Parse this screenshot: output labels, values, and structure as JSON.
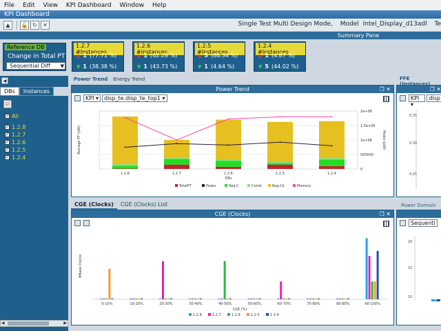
{
  "menu": [
    "File",
    "Edit",
    "View",
    "KPI Dashboard",
    "Window",
    "Help"
  ],
  "window_title": "KPI Dashboard",
  "context": [
    "Single Test Multi Design Mode,",
    "Model",
    "Intel_Display_d13adl",
    "Te"
  ],
  "summary_pane_title": "Summary Pane",
  "reference": {
    "label": "Reference DB",
    "metric": "Change in Total PT",
    "mode": "Sequential Diff"
  },
  "kpis": [
    {
      "header": "1.2.7 #Instances",
      "up_count": "1",
      "up_pct": "(77.71 %)",
      "down_count": "1",
      "down_pct": "(38.38 %)"
    },
    {
      "header": "1.2.6 #Instances",
      "up_count": "1",
      "up_pct": "(62.28 %)",
      "down_count": "1",
      "down_pct": "(43.73 %)"
    },
    {
      "header": "1.2.5 #Instances",
      "up_count": "5",
      "up_pct": "(86.34 %)",
      "down_count": "1",
      "down_pct": "(4.64 %)"
    },
    {
      "header": "1.2.4 #Instances",
      "up_count": "1",
      "up_pct": "(4.87 %)",
      "down_count": "5",
      "down_pct": "(44.02 %)"
    }
  ],
  "left": {
    "tabs": [
      "DBs",
      "Instances"
    ],
    "items": [
      "All",
      "1.2.8",
      "1.2.7",
      "1.2.6",
      "1.2.5",
      "1.2.4"
    ]
  },
  "power_tabs": [
    "Power Trend",
    "Energy Trend"
  ],
  "power_panel": {
    "title": "Power Trend",
    "kpi_select": "KPI",
    "instance_select": "disp_te.disp_te_top1"
  },
  "ffe": {
    "label": "FFE (Instances)",
    "kpi_select": "KPI",
    "instance_select": "disp"
  },
  "cge_tabs": [
    "CGE (Clocks)",
    "CGE (Clocks) List"
  ],
  "cge_panel": {
    "title": "CGE (Clocks)"
  },
  "power_domain_label": "Power Domain",
  "seq_select": "Sequenti",
  "colors": {
    "blue_panel": "#1f5f8b",
    "header_blue": "#2d6d9b",
    "yellow": "#e8d93a",
    "green": "#6db33f"
  },
  "chart_data": [
    {
      "type": "bar",
      "title": "Power Trend",
      "xlabel": "DBs",
      "ylabel": "Average PT (pW)",
      "y2label": "Peaks (pW)",
      "categories": [
        "1.2.8",
        "1.2.7",
        "1.2.6",
        "1.2.5",
        "1.2.4"
      ],
      "y2_ticks": [
        "2e+06",
        "1.5e+06",
        "1e+06",
        "500000",
        "0"
      ],
      "stacked": true,
      "series": [
        {
          "name": "TotalPT",
          "color": "#c0262b",
          "values": [
            0.5,
            6,
            3,
            6,
            4
          ]
        },
        {
          "name": "Peaks",
          "color": "#2a1a44",
          "line": true,
          "values": [
            30,
            35,
            33,
            37,
            32
          ]
        },
        {
          "name": "Comb",
          "color": "#7de07d",
          "values": [
            2,
            1,
            2,
            2,
            2
          ]
        },
        {
          "name": "Reg.C",
          "color": "#22dd22",
          "values": [
            4,
            8,
            8,
            2,
            9
          ]
        },
        {
          "name": "Reg.Ck",
          "color": "#e5c020",
          "values": [
            66,
            25,
            55,
            55,
            51
          ]
        },
        {
          "name": "Memory",
          "color": "#ff44aa",
          "line": true,
          "values": [
            71,
            40,
            69,
            72,
            72
          ]
        }
      ],
      "legend": [
        "TotalPT",
        "Peaks",
        "Reg.C",
        "Comb",
        "Reg.Ck",
        "Memory"
      ],
      "legend_position": "bottom"
    },
    {
      "type": "bar",
      "title": "CGE (Clocks)",
      "xlabel": "CGE (%)",
      "ylabel": "#Base Clocks",
      "categories": [
        "0-10%",
        "10-20%",
        "20-30%",
        "30-40%",
        "40-50%",
        "50-60%",
        "60-70%",
        "70-80%",
        "80-90%",
        "90-100%"
      ],
      "legend_position": "bottom",
      "series": [
        {
          "name": "1.2.8",
          "color": "#1ea7e0",
          "values": [
            0,
            0,
            0,
            0,
            0,
            0,
            0,
            0,
            0,
            24
          ]
        },
        {
          "name": "1.2.7",
          "color": "#ee22aa",
          "values": [
            0,
            0,
            15,
            0,
            0,
            0,
            7,
            0,
            0,
            17
          ]
        },
        {
          "name": "1.2.6",
          "color": "#22bb44",
          "values": [
            0,
            0,
            0,
            0,
            15,
            0,
            0,
            0,
            0,
            7
          ]
        },
        {
          "name": "1.2.5",
          "color": "#f59a2a",
          "values": [
            12,
            0,
            0,
            0,
            0,
            0,
            0,
            0,
            0,
            7
          ]
        },
        {
          "name": "1.2.4",
          "color": "#1f4fb0",
          "values": [
            0,
            0,
            0,
            0,
            0,
            0,
            0,
            0,
            0,
            19
          ]
        }
      ]
    }
  ]
}
